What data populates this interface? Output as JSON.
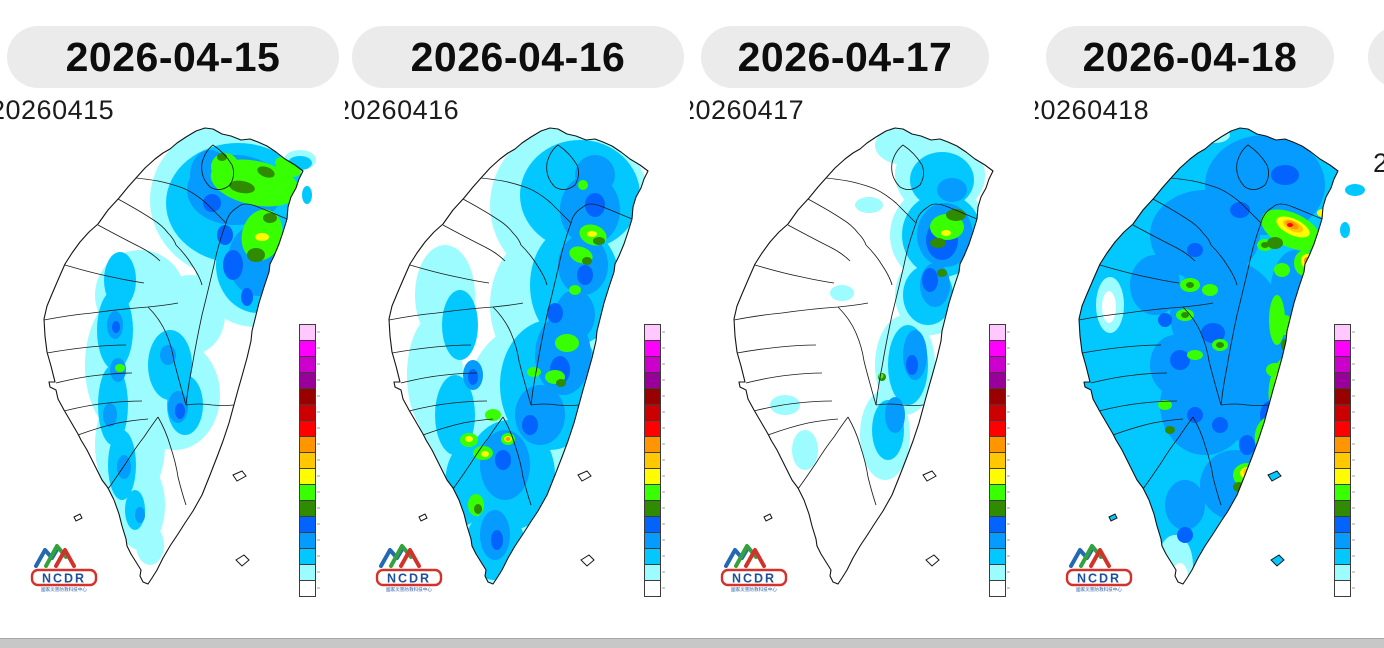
{
  "panels": [
    {
      "date": "2026-04-15",
      "map_label": "20260415"
    },
    {
      "date": "2026-04-16",
      "map_label": "20260416"
    },
    {
      "date": "2026-04-17",
      "map_label": "20260417"
    },
    {
      "date": "2026-04-18",
      "map_label": "20260418"
    }
  ],
  "next_panel": {
    "label_fragment": "2"
  },
  "pill_style": {
    "background": "#ebebeb",
    "text_color": "#0d0d0d"
  },
  "colorbar": {
    "colors_top_to_bottom": [
      "#FFC8FF",
      "#FF00FF",
      "#CC00CC",
      "#990099",
      "#990000",
      "#CC0000",
      "#FF0000",
      "#FF9500",
      "#FFC800",
      "#FFFB03",
      "#39FF03",
      "#2F8B00",
      "#0363FF",
      "#059BFF",
      "#03C8FF",
      "#9CFCFF",
      "#FFFFFF"
    ],
    "border_color": "#3c3c3c"
  },
  "logo": {
    "text": "NCDR",
    "subtext": "國家災害防救科技中心",
    "colors": {
      "blue": "#2368B2",
      "green": "#33A23C",
      "red": "#D3322B"
    }
  }
}
